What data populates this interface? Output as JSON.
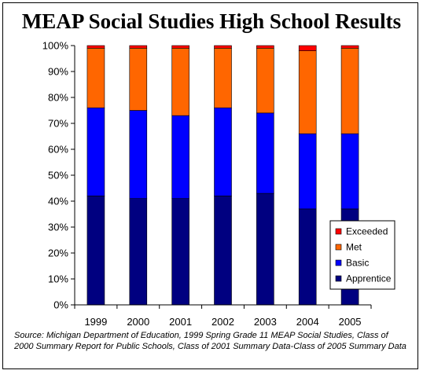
{
  "chart_data": {
    "type": "bar",
    "stacked": true,
    "title": "MEAP Social Studies High School Results",
    "categories": [
      "1999",
      "2000",
      "2001",
      "2002",
      "2003",
      "2004",
      "2005"
    ],
    "series": [
      {
        "name": "Apprentice",
        "color": "#000080",
        "values": [
          42,
          41,
          41,
          42,
          43,
          37,
          37
        ]
      },
      {
        "name": "Basic",
        "color": "#0000ff",
        "values": [
          34,
          34,
          32,
          34,
          31,
          29,
          29
        ]
      },
      {
        "name": "Met",
        "color": "#ff6600",
        "values": [
          23,
          24,
          26,
          23,
          25,
          32,
          33
        ]
      },
      {
        "name": "Exceeded",
        "color": "#ff0000",
        "values": [
          1,
          1,
          1,
          1,
          1,
          2,
          1
        ]
      }
    ],
    "ylim": [
      0,
      100
    ],
    "yticks": [
      "0%",
      "10%",
      "20%",
      "30%",
      "40%",
      "50%",
      "60%",
      "70%",
      "80%",
      "90%",
      "100%"
    ],
    "grid": false,
    "legend_position": "bottom-right",
    "legend_order": [
      "Exceeded",
      "Met",
      "Basic",
      "Apprentice"
    ]
  },
  "source_note": "Source:  Michigan Department of Education, 1999 Spring Grade 11 MEAP Social Studies, Class of 2000 Summary Report for Public Schools, Class of 2001 Summary Data-Class of 2005 Summary Data"
}
